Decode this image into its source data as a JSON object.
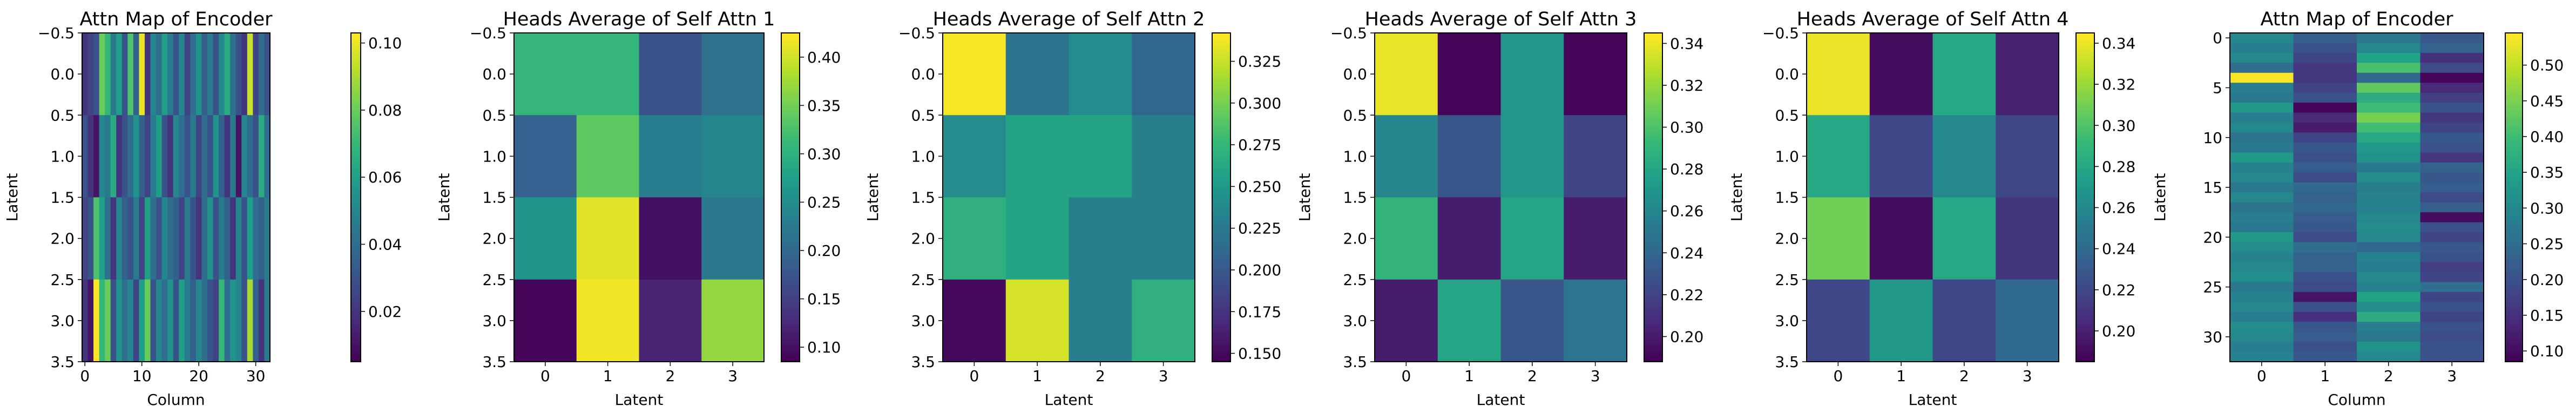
{
  "figure": {
    "background": "#ffffff"
  },
  "colormap": {
    "name": "viridis",
    "stops": [
      "#440154",
      "#482878",
      "#3e4989",
      "#31688e",
      "#26828e",
      "#1f9e89",
      "#35b779",
      "#6ece58",
      "#b5de2b",
      "#fde725"
    ]
  },
  "chart_data": [
    {
      "type": "heatmap",
      "title": "Attn Map of Encoder",
      "xlabel": "Column",
      "ylabel": "Latent",
      "rows": 4,
      "cols": 33,
      "xlim": [
        -0.5,
        32.5
      ],
      "ylim": [
        3.5,
        -0.5
      ],
      "xticks": [
        0,
        10,
        20,
        30
      ],
      "yticks": [
        -0.5,
        0.0,
        0.5,
        1.0,
        1.5,
        2.0,
        2.5,
        3.0,
        3.5
      ],
      "ytick_labels": [
        "−0.5",
        "0.0",
        "0.5",
        "1.0",
        "1.5",
        "2.0",
        "2.5",
        "3.0",
        "3.5"
      ],
      "vmin": 0.005,
      "vmax": 0.103,
      "colorbar_ticks": [
        0.02,
        0.04,
        0.06,
        0.08,
        0.1
      ],
      "colorbar_labels": [
        "0.02",
        "0.04",
        "0.06",
        "0.08",
        "0.10"
      ],
      "values": [
        [
          0.02,
          0.025,
          0.03,
          0.08,
          0.07,
          0.045,
          0.06,
          0.03,
          0.075,
          0.035,
          0.1,
          0.02,
          0.05,
          0.04,
          0.06,
          0.045,
          0.03,
          0.05,
          0.025,
          0.04,
          0.055,
          0.035,
          0.045,
          0.03,
          0.05,
          0.065,
          0.04,
          0.03,
          0.02,
          0.095,
          0.025,
          0.04,
          0.03
        ],
        [
          0.03,
          0.02,
          0.01,
          0.05,
          0.045,
          0.065,
          0.02,
          0.03,
          0.04,
          0.055,
          0.035,
          0.025,
          0.045,
          0.06,
          0.03,
          0.02,
          0.05,
          0.04,
          0.03,
          0.045,
          0.025,
          0.04,
          0.03,
          0.055,
          0.035,
          0.02,
          0.045,
          0.01,
          0.05,
          0.04,
          0.03,
          0.065,
          0.04
        ],
        [
          0.025,
          0.03,
          0.075,
          0.06,
          0.04,
          0.02,
          0.05,
          0.035,
          0.03,
          0.045,
          0.025,
          0.06,
          0.04,
          0.03,
          0.05,
          0.04,
          0.035,
          0.025,
          0.045,
          0.03,
          0.02,
          0.04,
          0.055,
          0.03,
          0.045,
          0.035,
          0.02,
          0.05,
          0.03,
          0.06,
          0.04,
          0.035,
          0.045
        ],
        [
          0.02,
          0.01,
          0.105,
          0.07,
          0.08,
          0.03,
          0.055,
          0.04,
          0.05,
          0.025,
          0.06,
          0.08,
          0.03,
          0.05,
          0.04,
          0.055,
          0.03,
          0.06,
          0.045,
          0.035,
          0.05,
          0.04,
          0.03,
          0.025,
          0.07,
          0.04,
          0.055,
          0.05,
          0.03,
          0.09,
          0.035,
          0.02,
          0.045
        ]
      ]
    },
    {
      "type": "heatmap",
      "title": "Heads Average of Self Attn 1",
      "xlabel": "Latent",
      "ylabel": "Latent",
      "rows": 4,
      "cols": 4,
      "xlim": [
        -0.5,
        3.5
      ],
      "ylim": [
        3.5,
        -0.5
      ],
      "xticks": [
        0,
        1,
        2,
        3
      ],
      "yticks": [
        -0.5,
        0.0,
        0.5,
        1.0,
        1.5,
        2.0,
        2.5,
        3.0,
        3.5
      ],
      "ytick_labels": [
        "−0.5",
        "0.0",
        "0.5",
        "1.0",
        "1.5",
        "2.0",
        "2.5",
        "3.0",
        "3.5"
      ],
      "vmin": 0.085,
      "vmax": 0.425,
      "colorbar_ticks": [
        0.1,
        0.15,
        0.2,
        0.25,
        0.3,
        0.35,
        0.4
      ],
      "colorbar_labels": [
        "0.10",
        "0.15",
        "0.20",
        "0.25",
        "0.30",
        "0.35",
        "0.40"
      ],
      "values": [
        [
          0.31,
          0.31,
          0.17,
          0.21
        ],
        [
          0.19,
          0.34,
          0.23,
          0.24
        ],
        [
          0.26,
          0.41,
          0.1,
          0.22
        ],
        [
          0.09,
          0.42,
          0.12,
          0.37
        ]
      ]
    },
    {
      "type": "heatmap",
      "title": "Heads Average of Self Attn 2",
      "xlabel": "Latent",
      "ylabel": "Latent",
      "rows": 4,
      "cols": 4,
      "xlim": [
        -0.5,
        3.5
      ],
      "ylim": [
        3.5,
        -0.5
      ],
      "xticks": [
        0,
        1,
        2,
        3
      ],
      "yticks": [
        -0.5,
        0.0,
        0.5,
        1.0,
        1.5,
        2.0,
        2.5,
        3.0,
        3.5
      ],
      "ytick_labels": [
        "−0.5",
        "0.0",
        "0.5",
        "1.0",
        "1.5",
        "2.0",
        "2.5",
        "3.0",
        "3.5"
      ],
      "vmin": 0.145,
      "vmax": 0.342,
      "colorbar_ticks": [
        0.15,
        0.175,
        0.2,
        0.225,
        0.25,
        0.275,
        0.3,
        0.325
      ],
      "colorbar_labels": [
        "0.150",
        "0.175",
        "0.200",
        "0.225",
        "0.250",
        "0.275",
        "0.300",
        "0.325"
      ],
      "values": [
        [
          0.34,
          0.22,
          0.24,
          0.21
        ],
        [
          0.24,
          0.26,
          0.26,
          0.23
        ],
        [
          0.27,
          0.26,
          0.23,
          0.23
        ],
        [
          0.15,
          0.33,
          0.23,
          0.27
        ]
      ]
    },
    {
      "type": "heatmap",
      "title": "Heads Average of Self Attn 3",
      "xlabel": "Latent",
      "ylabel": "Latent",
      "rows": 4,
      "cols": 4,
      "xlim": [
        -0.5,
        3.5
      ],
      "ylim": [
        3.5,
        -0.5
      ],
      "xticks": [
        0,
        1,
        2,
        3
      ],
      "yticks": [
        -0.5,
        0.0,
        0.5,
        1.0,
        1.5,
        2.0,
        2.5,
        3.0,
        3.5
      ],
      "ytick_labels": [
        "−0.5",
        "0.0",
        "0.5",
        "1.0",
        "1.5",
        "2.0",
        "2.5",
        "3.0",
        "3.5"
      ],
      "vmin": 0.188,
      "vmax": 0.345,
      "colorbar_ticks": [
        0.2,
        0.22,
        0.24,
        0.26,
        0.28,
        0.3,
        0.32,
        0.34
      ],
      "colorbar_labels": [
        "0.20",
        "0.22",
        "0.24",
        "0.26",
        "0.28",
        "0.30",
        "0.32",
        "0.34"
      ],
      "values": [
        [
          0.34,
          0.19,
          0.27,
          0.19
        ],
        [
          0.26,
          0.23,
          0.27,
          0.22
        ],
        [
          0.29,
          0.2,
          0.28,
          0.2
        ],
        [
          0.2,
          0.28,
          0.23,
          0.25
        ]
      ]
    },
    {
      "type": "heatmap",
      "title": "Heads Average of Self Attn 4",
      "xlabel": "Latent",
      "ylabel": "Latent",
      "rows": 4,
      "cols": 4,
      "xlim": [
        -0.5,
        3.5
      ],
      "ylim": [
        3.5,
        -0.5
      ],
      "xticks": [
        0,
        1,
        2,
        3
      ],
      "yticks": [
        -0.5,
        0.0,
        0.5,
        1.0,
        1.5,
        2.0,
        2.5,
        3.0,
        3.5
      ],
      "ytick_labels": [
        "−0.5",
        "0.0",
        "0.5",
        "1.0",
        "1.5",
        "2.0",
        "2.5",
        "3.0",
        "3.5"
      ],
      "vmin": 0.185,
      "vmax": 0.345,
      "colorbar_ticks": [
        0.2,
        0.22,
        0.24,
        0.26,
        0.28,
        0.3,
        0.32,
        0.34
      ],
      "colorbar_labels": [
        "0.20",
        "0.22",
        "0.24",
        "0.26",
        "0.28",
        "0.30",
        "0.32",
        "0.34"
      ],
      "values": [
        [
          0.34,
          0.19,
          0.28,
          0.2
        ],
        [
          0.28,
          0.22,
          0.26,
          0.22
        ],
        [
          0.31,
          0.19,
          0.28,
          0.21
        ],
        [
          0.22,
          0.27,
          0.22,
          0.24
        ]
      ]
    },
    {
      "type": "heatmap",
      "title": "Attn Map of Encoder",
      "xlabel": "Column",
      "ylabel": "Latent",
      "rows": 33,
      "cols": 4,
      "xlim": [
        -0.5,
        3.5
      ],
      "ylim": [
        32.5,
        -0.5
      ],
      "xticks": [
        0,
        1,
        2,
        3
      ],
      "yticks": [
        0,
        5,
        10,
        15,
        20,
        25,
        30
      ],
      "ytick_labels": [
        "0",
        "5",
        "10",
        "15",
        "20",
        "25",
        "30"
      ],
      "vmin": 0.085,
      "vmax": 0.545,
      "colorbar_ticks": [
        0.1,
        0.15,
        0.2,
        0.25,
        0.3,
        0.35,
        0.4,
        0.45,
        0.5
      ],
      "colorbar_labels": [
        "0.10",
        "0.15",
        "0.20",
        "0.25",
        "0.30",
        "0.35",
        "0.40",
        "0.45",
        "0.50"
      ],
      "values": [
        [
          0.3,
          0.22,
          0.27,
          0.21
        ],
        [
          0.28,
          0.2,
          0.3,
          0.23
        ],
        [
          0.3,
          0.18,
          0.35,
          0.15
        ],
        [
          0.25,
          0.16,
          0.41,
          0.19
        ],
        [
          0.54,
          0.16,
          0.24,
          0.09
        ],
        [
          0.28,
          0.18,
          0.43,
          0.14
        ],
        [
          0.27,
          0.2,
          0.37,
          0.17
        ],
        [
          0.33,
          0.09,
          0.4,
          0.2
        ],
        [
          0.28,
          0.14,
          0.45,
          0.16
        ],
        [
          0.3,
          0.12,
          0.4,
          0.18
        ],
        [
          0.26,
          0.18,
          0.36,
          0.21
        ],
        [
          0.27,
          0.21,
          0.33,
          0.2
        ],
        [
          0.33,
          0.2,
          0.32,
          0.16
        ],
        [
          0.29,
          0.22,
          0.27,
          0.23
        ],
        [
          0.3,
          0.19,
          0.31,
          0.21
        ],
        [
          0.27,
          0.24,
          0.28,
          0.22
        ],
        [
          0.3,
          0.23,
          0.29,
          0.19
        ],
        [
          0.26,
          0.24,
          0.29,
          0.22
        ],
        [
          0.28,
          0.22,
          0.3,
          0.1
        ],
        [
          0.27,
          0.21,
          0.31,
          0.2
        ],
        [
          0.33,
          0.19,
          0.3,
          0.18
        ],
        [
          0.31,
          0.25,
          0.24,
          0.21
        ],
        [
          0.29,
          0.23,
          0.29,
          0.2
        ],
        [
          0.3,
          0.23,
          0.28,
          0.17
        ],
        [
          0.31,
          0.2,
          0.3,
          0.18
        ],
        [
          0.27,
          0.19,
          0.29,
          0.25
        ],
        [
          0.29,
          0.11,
          0.35,
          0.18
        ],
        [
          0.3,
          0.2,
          0.31,
          0.2
        ],
        [
          0.28,
          0.15,
          0.37,
          0.18
        ],
        [
          0.31,
          0.21,
          0.28,
          0.2
        ],
        [
          0.3,
          0.22,
          0.27,
          0.19
        ],
        [
          0.28,
          0.2,
          0.32,
          0.2
        ],
        [
          0.29,
          0.21,
          0.3,
          0.2
        ]
      ]
    }
  ]
}
